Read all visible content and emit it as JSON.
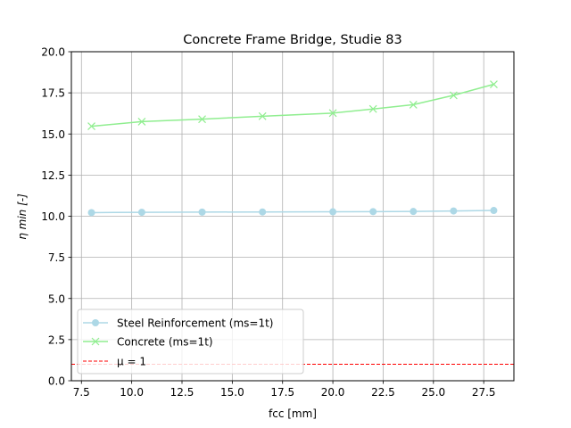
{
  "chart_data": {
    "type": "line",
    "title": "Concrete Frame Bridge, Studie 83",
    "xlabel": "fcc [mm]",
    "ylabel": "η min [-]",
    "xlim": [
      7.0,
      29.0
    ],
    "ylim": [
      0.0,
      20.0
    ],
    "xticks": [
      7.5,
      10.0,
      12.5,
      15.0,
      17.5,
      20.0,
      22.5,
      25.0,
      27.5
    ],
    "xtick_labels": [
      "7.5",
      "10.0",
      "12.5",
      "15.0",
      "17.5",
      "20.0",
      "22.5",
      "25.0",
      "27.5"
    ],
    "yticks": [
      0.0,
      2.5,
      5.0,
      7.5,
      10.0,
      12.5,
      15.0,
      17.5,
      20.0
    ],
    "ytick_labels": [
      "0.0",
      "2.5",
      "5.0",
      "7.5",
      "10.0",
      "12.5",
      "15.0",
      "17.5",
      "20.0"
    ],
    "grid": true,
    "legend_position": "lower-left",
    "x": [
      8,
      10.5,
      13.5,
      16.5,
      20,
      22,
      24,
      26,
      28
    ],
    "series": [
      {
        "name": "Steel Reinforcement (ms=1t)",
        "values": [
          10.22,
          10.24,
          10.25,
          10.26,
          10.27,
          10.28,
          10.29,
          10.32,
          10.35
        ],
        "color": "#add8e6",
        "marker": "circle"
      },
      {
        "name": "Concrete (ms=1t)",
        "values": [
          15.47,
          15.75,
          15.9,
          16.08,
          16.27,
          16.52,
          16.78,
          17.35,
          18.02
        ],
        "color": "#90ee90",
        "marker": "x"
      }
    ],
    "reference_line": {
      "name": "μ = 1",
      "y": 1.0,
      "color": "#ff0000",
      "style": "dashed"
    }
  }
}
